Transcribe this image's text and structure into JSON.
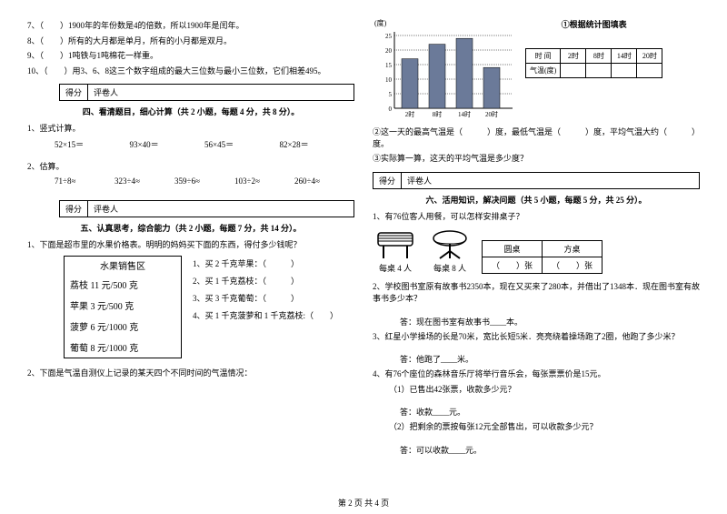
{
  "left": {
    "tf_questions": [
      "7、（　　）1900年的年份数是4的倍数，所以1900年是闰年。",
      "8、（　　）所有的大月都是单月，所有的小月都是双月。",
      "9、（　　）1吨铁与1吨棉花一样重。",
      "10、（　　）用3、6、8这三个数字组成的最大三位数与最小三位数，它们相差495。"
    ],
    "score_labels": {
      "a": "得分",
      "b": "评卷人"
    },
    "sec4_title": "四、看清题目，细心计算（共 2 小题，每题 4 分，共 8 分）。",
    "sec4_sub1": "1、竖式计算。",
    "sec4_calc1": [
      "52×15＝",
      "93×40＝",
      "56×45＝",
      "82×28＝"
    ],
    "sec4_sub2": "2、估算。",
    "sec4_calc2": [
      "71÷8≈",
      "323÷4≈",
      "359÷6≈",
      "103÷2≈",
      "260÷4≈"
    ],
    "sec5_title": "五、认真思考，综合能力（共 2 小题，每题 7 分，共 14 分）。",
    "sec5_q1": "1、下面是超市里的水果价格表。明明的妈妈买下面的东西，得付多少钱呢？",
    "fruit_table": {
      "title": "水果销售区",
      "rows": [
        "荔枝 11 元/500 克",
        "苹果 3 元/500 克",
        "菠萝 6 元/1000 克",
        "葡萄 8 元/1000 克"
      ]
    },
    "fruit_qs": [
      "1、买 2 千克苹果：（　　　）",
      "2、买 1 千克荔枝：（　　　）",
      "3、买 3 千克葡萄：（　　　）",
      "4、买 1 千克菠萝和 1 千克荔枝:（　　）"
    ],
    "sec5_q2": "2、下面是气温自测仪上记录的某天四个不同时间的气温情况："
  },
  "right": {
    "chart": {
      "title": "①根据统计图填表",
      "y_label": "(度)",
      "y_ticks": [
        0,
        5,
        10,
        15,
        20,
        25
      ],
      "x_ticks": [
        "2时",
        "8时",
        "14时",
        "20时"
      ],
      "bars": [
        17,
        22,
        24,
        14
      ],
      "bar_color": "#6b7a99",
      "grid_color": "#000",
      "bg": "#fff"
    },
    "temp_table": {
      "headers": [
        "时 间",
        "2时",
        "8时",
        "14时",
        "20时"
      ],
      "row_label": "气温(度)"
    },
    "chart_q2": "②这一天的最高气温是（　　　）度，最低气温是（　　　）度，平均气温大约（　　　）度。",
    "chart_q3": "③实际算一算，这天的平均气温是多少度？",
    "score_labels": {
      "a": "得分",
      "b": "评卷人"
    },
    "sec6_title": "六、活用知识，解决问题（共 5 小题，每题 5 分，共 25 分）。",
    "sec6_q1": "1、有76位客人用餐，可以怎样安排桌子？",
    "desk_labels": {
      "square": "每桌 4 人",
      "round": "每桌 8 人"
    },
    "desk_table": {
      "headers": [
        "圆桌",
        "方桌"
      ],
      "cells": [
        "（　　）张",
        "（　　）张"
      ]
    },
    "sec6_q2": "2、学校图书室原有故事书2350本，现在又买来了280本，并借出了1348本．现在图书室有故事书多少本？",
    "sec6_q2_ans": "答：现在图书室有故事书____本。",
    "sec6_q3": "3、红星小学操场的长是70米，宽比长短5米．亮亮绕着操场跑了2圈，他跑了多少米？",
    "sec6_q3_ans": "答：他跑了____米。",
    "sec6_q4": "4、有76个座位的森林音乐厅将举行音乐会，每张票票价是15元。",
    "sec6_q4_1": "（1）已售出42张票，收款多少元？",
    "sec6_q4_1_ans": "答：收款____元。",
    "sec6_q4_2": "（2）把剩余的票按每张12元全部售出，可以收款多少元？",
    "sec6_q4_2_ans": "答：可以收款____元。"
  },
  "footer": "第 2 页 共 4 页"
}
